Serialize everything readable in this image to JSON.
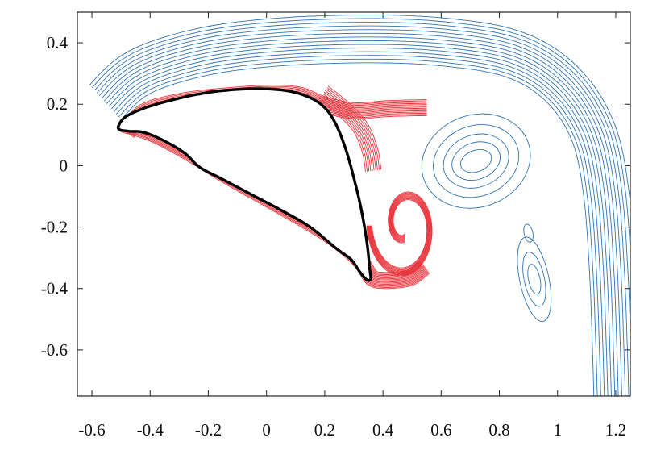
{
  "chart_data": {
    "type": "contour",
    "title": "",
    "xlabel": "",
    "ylabel": "",
    "xlim": [
      -0.65,
      1.25
    ],
    "ylim": [
      -0.75,
      0.5
    ],
    "xticks": [
      {
        "value": -0.6,
        "label": "-0.6"
      },
      {
        "value": -0.4,
        "label": "-0.4"
      },
      {
        "value": -0.2,
        "label": "-0.2"
      },
      {
        "value": 0,
        "label": "0"
      },
      {
        "value": 0.2,
        "label": "0.2"
      },
      {
        "value": 0.4,
        "label": "0.4"
      },
      {
        "value": 0.6,
        "label": "0.6"
      },
      {
        "value": 0.8,
        "label": "0.8"
      },
      {
        "value": 1,
        "label": "1"
      },
      {
        "value": 1.2,
        "label": "1.2"
      }
    ],
    "yticks": [
      {
        "value": 0.4,
        "label": "0.4"
      },
      {
        "value": 0.2,
        "label": "0.2"
      },
      {
        "value": 0,
        "label": "0"
      },
      {
        "value": -0.2,
        "label": "-0.2"
      },
      {
        "value": -0.4,
        "label": "-0.4"
      },
      {
        "value": -0.6,
        "label": "-0.6"
      }
    ],
    "grid": false,
    "colors": {
      "red_family": "#e8323a",
      "blue_family": "#2f74b5",
      "body": "#000000"
    },
    "body_outline": [
      [
        -0.5,
        0.115
      ],
      [
        -0.51,
        0.125
      ],
      [
        -0.49,
        0.155
      ],
      [
        -0.44,
        0.18
      ],
      [
        -0.36,
        0.205
      ],
      [
        -0.24,
        0.232
      ],
      [
        -0.12,
        0.247
      ],
      [
        0.0,
        0.25
      ],
      [
        0.1,
        0.238
      ],
      [
        0.18,
        0.205
      ],
      [
        0.23,
        0.15
      ],
      [
        0.27,
        0.06
      ],
      [
        0.3,
        -0.04
      ],
      [
        0.325,
        -0.14
      ],
      [
        0.345,
        -0.25
      ],
      [
        0.355,
        -0.34
      ],
      [
        0.358,
        -0.368
      ],
      [
        0.345,
        -0.372
      ],
      [
        0.32,
        -0.345
      ],
      [
        0.29,
        -0.305
      ],
      [
        0.24,
        -0.27
      ],
      [
        0.15,
        -0.2
      ],
      [
        0.05,
        -0.145
      ],
      [
        -0.05,
        -0.095
      ],
      [
        -0.15,
        -0.045
      ],
      [
        -0.23,
        -0.005
      ],
      [
        -0.28,
        0.04
      ],
      [
        -0.35,
        0.08
      ],
      [
        -0.42,
        0.108
      ],
      [
        -0.47,
        0.112
      ],
      [
        -0.5,
        0.115
      ]
    ],
    "red_upper_contour_base": [
      [
        -0.5,
        0.12
      ],
      [
        -0.44,
        0.195
      ],
      [
        -0.3,
        0.235
      ],
      [
        -0.12,
        0.255
      ],
      [
        0.02,
        0.262
      ],
      [
        0.12,
        0.255
      ],
      [
        0.2,
        0.225
      ],
      [
        0.3,
        0.205
      ],
      [
        0.42,
        0.212
      ],
      [
        0.55,
        0.215
      ]
    ],
    "red_wedge_base": [
      [
        0.18,
        0.215
      ],
      [
        0.24,
        0.17
      ],
      [
        0.3,
        0.11
      ],
      [
        0.33,
        0.04
      ],
      [
        0.34,
        -0.02
      ]
    ],
    "red_lower_contour_base": [
      [
        -0.5,
        0.11
      ],
      [
        -0.4,
        0.08
      ],
      [
        -0.28,
        0.02
      ],
      [
        -0.15,
        -0.055
      ],
      [
        0.0,
        -0.135
      ],
      [
        0.12,
        -0.2
      ],
      [
        0.22,
        -0.26
      ],
      [
        0.3,
        -0.325
      ],
      [
        0.345,
        -0.385
      ],
      [
        0.4,
        -0.4
      ],
      [
        0.5,
        -0.39
      ],
      [
        0.56,
        -0.35
      ]
    ],
    "red_spiral": {
      "center": [
        0.475,
        -0.195
      ],
      "r_start": 0.035,
      "r_end": 0.205,
      "turns": 1.25
    },
    "blue_body_shell_offsets": [
      0.006,
      0.012,
      0.02,
      0.03
    ],
    "blue_vortex": {
      "center": [
        0.72,
        0.015
      ],
      "semi_axes": [
        [
          0.055,
          0.035
        ],
        [
          0.085,
          0.06
        ],
        [
          0.115,
          0.085
        ],
        [
          0.15,
          0.115
        ],
        [
          0.19,
          0.15
        ]
      ]
    },
    "blue_wake_base": [
      [
        -0.5,
        0.15
      ],
      [
        -0.4,
        0.235
      ],
      [
        -0.2,
        0.295
      ],
      [
        0.05,
        0.325
      ],
      [
        0.35,
        0.335
      ],
      [
        0.6,
        0.325
      ],
      [
        0.82,
        0.29
      ],
      [
        0.96,
        0.21
      ],
      [
        1.05,
        0.08
      ],
      [
        1.09,
        -0.1
      ],
      [
        1.11,
        -0.35
      ],
      [
        1.12,
        -0.6
      ],
      [
        1.125,
        -0.76
      ]
    ],
    "blue_secondary_vortices": [
      {
        "center": [
          0.92,
          -0.37
        ],
        "semi_axes": [
          [
            0.02,
            0.05
          ],
          [
            0.035,
            0.09
          ],
          [
            0.05,
            0.14
          ]
        ]
      },
      {
        "center": [
          0.9,
          -0.22
        ],
        "semi_axes": [
          [
            0.015,
            0.03
          ]
        ]
      }
    ]
  }
}
